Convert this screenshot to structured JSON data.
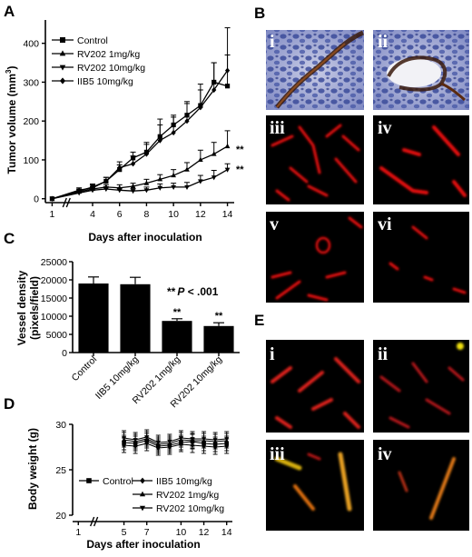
{
  "panels": {
    "a": "A",
    "b": "B",
    "c": "C",
    "d": "D",
    "e": "E"
  },
  "chart_data": [
    {
      "panel": "A",
      "type": "line",
      "xlabel": "Days after inoculation",
      "ylabel": "Tumor volume (mm3)",
      "ylabel_main": "Tumor volume (mm",
      "ylabel_sup": "3",
      "ylabel_end": ")",
      "xlim": [
        0.5,
        14.5
      ],
      "ylim": [
        -10,
        460
      ],
      "xticks": [
        1,
        4,
        6,
        8,
        10,
        12,
        14
      ],
      "yticks": [
        0,
        100,
        200,
        300,
        400
      ],
      "legend_position": "top-left",
      "series": [
        {
          "name": "Control",
          "marker": "square",
          "x": [
            1,
            3,
            4,
            5,
            6,
            7,
            8,
            9,
            10,
            11,
            12,
            13,
            14
          ],
          "y": [
            0,
            20,
            30,
            45,
            75,
            105,
            120,
            160,
            190,
            215,
            240,
            300,
            290
          ],
          "err": [
            0,
            5,
            8,
            10,
            12,
            15,
            25,
            45,
            25,
            30,
            40,
            50,
            80
          ]
        },
        {
          "name": "RV202 1mg/kg",
          "marker": "triangle-up",
          "x": [
            1,
            3,
            4,
            5,
            6,
            7,
            8,
            9,
            10,
            11,
            12,
            13,
            14
          ],
          "y": [
            0,
            18,
            25,
            30,
            28,
            32,
            40,
            50,
            60,
            75,
            100,
            115,
            135
          ],
          "err": [
            0,
            5,
            6,
            6,
            8,
            8,
            10,
            12,
            15,
            18,
            25,
            30,
            40
          ]
        },
        {
          "name": "RV202 10mg/kg",
          "marker": "triangle-down",
          "x": [
            1,
            3,
            4,
            5,
            6,
            7,
            8,
            9,
            10,
            11,
            12,
            13,
            14
          ],
          "y": [
            0,
            15,
            22,
            25,
            22,
            20,
            22,
            28,
            30,
            30,
            45,
            55,
            75
          ],
          "err": [
            0,
            5,
            6,
            6,
            5,
            6,
            8,
            10,
            10,
            12,
            15,
            18,
            15
          ]
        },
        {
          "name": "IIB5 10mg/kg",
          "marker": "diamond",
          "x": [
            1,
            3,
            4,
            5,
            6,
            7,
            8,
            9,
            10,
            11,
            12,
            13,
            14
          ],
          "y": [
            0,
            22,
            28,
            45,
            80,
            90,
            115,
            150,
            170,
            200,
            235,
            280,
            330
          ],
          "err": [
            0,
            6,
            8,
            10,
            15,
            20,
            25,
            40,
            40,
            50,
            60,
            70,
            110
          ]
        }
      ],
      "annotations": [
        "**",
        "**"
      ]
    },
    {
      "panel": "C",
      "type": "bar",
      "ylabel_line1": "Vessel density",
      "ylabel_line2": "(pixels/field)",
      "categories": [
        "Control",
        "IIB5 10mg/kg",
        "RV202 1mg/kg",
        "RV202 10mg/kg"
      ],
      "values": [
        19000,
        18800,
        8700,
        7300
      ],
      "err": [
        1800,
        1900,
        600,
        900
      ],
      "sig": [
        "",
        "",
        "**",
        "**"
      ],
      "ylim": [
        0,
        25000
      ],
      "yticks": [
        0,
        5000,
        10000,
        15000,
        20000,
        25000
      ],
      "annotation_stars": "**",
      "annotation_p": "P",
      "annotation_rest": " < .001"
    },
    {
      "panel": "D",
      "type": "line",
      "xlabel": "Days after inoculation",
      "ylabel": "Body weight (g)",
      "xlim": [
        0.5,
        14.5
      ],
      "ylim": [
        20,
        30
      ],
      "xticks": [
        1,
        5,
        7,
        10,
        12,
        14
      ],
      "yticks": [
        20,
        25,
        30
      ],
      "legend_position": "bottom",
      "series": [
        {
          "name": "Control",
          "marker": "square",
          "x": [
            5,
            6,
            7,
            8,
            9,
            10,
            11,
            12,
            13,
            14
          ],
          "y": [
            28.0,
            27.9,
            28.2,
            27.6,
            27.7,
            28.0,
            28.1,
            27.9,
            27.8,
            27.9
          ],
          "err": 0.8
        },
        {
          "name": "IIB5 10mg/kg",
          "marker": "diamond",
          "x": [
            5,
            6,
            7,
            8,
            9,
            10,
            11,
            12,
            13,
            14
          ],
          "y": [
            27.7,
            27.6,
            27.9,
            27.4,
            27.5,
            27.8,
            27.7,
            27.6,
            27.5,
            27.6
          ],
          "err": 0.8
        },
        {
          "name": "RV202 1mg/kg",
          "marker": "triangle-up",
          "x": [
            5,
            6,
            7,
            8,
            9,
            10,
            11,
            12,
            13,
            14
          ],
          "y": [
            28.3,
            28.1,
            28.4,
            27.8,
            27.9,
            28.3,
            28.2,
            28.2,
            28.1,
            28.2
          ],
          "err": 0.8
        },
        {
          "name": "RV202 10mg/kg",
          "marker": "triangle-down",
          "x": [
            5,
            6,
            7,
            8,
            9,
            10,
            11,
            12,
            13,
            14
          ],
          "y": [
            28.5,
            28.3,
            28.6,
            28.0,
            28.1,
            28.5,
            28.4,
            28.4,
            28.3,
            28.4
          ],
          "err": 0.8
        }
      ]
    }
  ],
  "micrographs": {
    "B": [
      "i",
      "ii",
      "iii",
      "iv",
      "v",
      "vi"
    ],
    "E": [
      "i",
      "ii",
      "iii",
      "iv"
    ]
  }
}
